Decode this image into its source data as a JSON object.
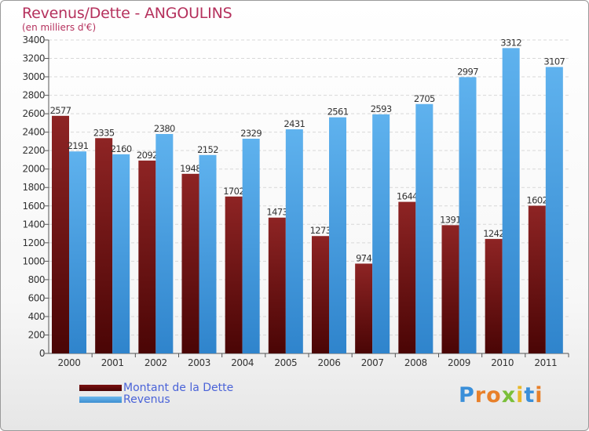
{
  "header": {
    "title": "Revenus/Dette - ANGOULINS",
    "subtitle": "(en milliers d'€)"
  },
  "chart_data": {
    "type": "bar",
    "categories": [
      "2000",
      "2001",
      "2002",
      "2003",
      "2004",
      "2005",
      "2006",
      "2007",
      "2008",
      "2009",
      "2010",
      "2011"
    ],
    "series": [
      {
        "name": "Montant de la Dette",
        "color": "#7a1010",
        "labels": [
          "2577",
          "2335",
          "2092",
          "1948",
          "1702",
          "1473",
          "1273",
          "974",
          "1644",
          "1391",
          "1242",
          "1602"
        ],
        "values": [
          2577,
          2335,
          2092,
          1948,
          1702,
          1473,
          1273,
          974,
          1644,
          1391,
          1242,
          1602
        ]
      },
      {
        "name": "Revenus",
        "color": "#4aa3e6",
        "labels": [
          "2191",
          "2160",
          "2380",
          "2152",
          "2329",
          "2431",
          "2561",
          "2593",
          "2705",
          "2997",
          "3312",
          "3107"
        ],
        "values": [
          2191,
          2160,
          2380,
          2152,
          2329,
          2431,
          2561,
          2593,
          2705,
          2997,
          3312,
          3107
        ]
      }
    ],
    "ylim": [
      0,
      3400
    ],
    "yticks": [
      "0",
      "200",
      "400",
      "600",
      "800",
      "1000",
      "1200",
      "1400",
      "1600",
      "1800",
      "2000",
      "2200",
      "2400",
      "2600",
      "2800",
      "3000",
      "3200",
      "3400"
    ],
    "grid": true,
    "legend_position": "bottom-left"
  },
  "legend": {
    "debt_label": "Montant de la Dette",
    "revenue_label": "Revenus"
  },
  "brand": {
    "letters": [
      "P",
      "r",
      "o",
      "x",
      "i",
      "t",
      "i"
    ],
    "colors": [
      "#3a8fd9",
      "#e8802a",
      "#e8802a",
      "#7abf3a",
      "#e8b82a",
      "#3a8fd9",
      "#e8802a"
    ]
  }
}
